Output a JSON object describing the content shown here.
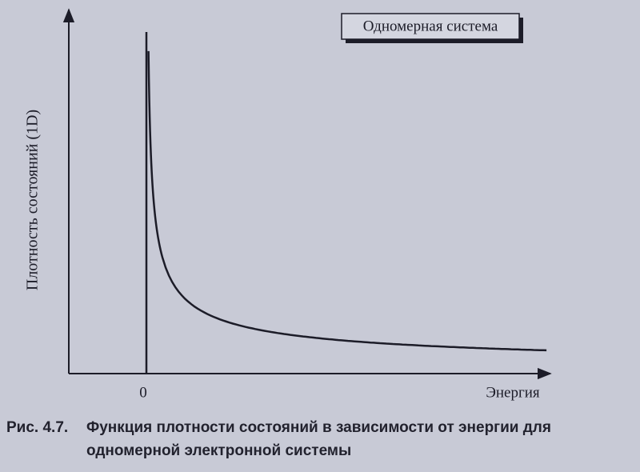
{
  "figure": {
    "inset_label": "Одномерная система",
    "y_label": "Плотность состояний (1D)",
    "x_tick": "0",
    "x_label": "Энергия"
  },
  "caption": {
    "number": "Рис. 4.7.",
    "lines": [
      "Функция плотности состояний в зависимости от энергии для",
      "одномерной электронной системы"
    ]
  }
}
